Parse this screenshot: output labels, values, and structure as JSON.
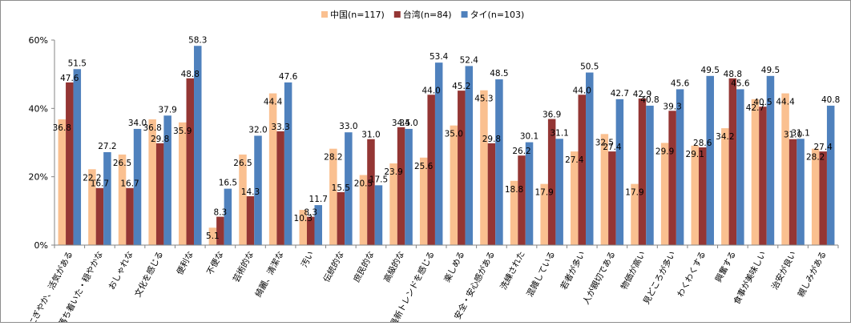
{
  "chart_data": {
    "type": "bar",
    "title": "",
    "xlabel": "",
    "ylabel": "",
    "ylim": [
      0,
      60
    ],
    "yticks": [
      0,
      20,
      40,
      60
    ],
    "ytick_format": "percent",
    "grid": false,
    "legend_position": "top",
    "categories": [
      "にぎやか、活気がある",
      "落ち着いた・穏やかな",
      "おしゃれな",
      "文化を感じる",
      "便利な",
      "不便な",
      "芸術的な",
      "綺麗、清潔な",
      "汚い",
      "伝統的な",
      "庶民的な",
      "高級的な",
      "最新トレンドを感じる",
      "楽しめる",
      "安全・安心感がある",
      "洗練された",
      "混雑している",
      "若者が多い",
      "人が親切である",
      "物価が高い",
      "見どころが多い",
      "わくわくする",
      "興奮する",
      "食事が美味しい",
      "治安が良い",
      "親しみがある"
    ],
    "series": [
      {
        "name": "中国(n=117)",
        "color": "#fac090",
        "values": [
          36.8,
          22.2,
          26.5,
          36.8,
          35.9,
          5.1,
          26.5,
          44.4,
          10.3,
          28.2,
          20.5,
          23.9,
          25.6,
          35.0,
          45.3,
          18.8,
          17.9,
          27.4,
          32.5,
          17.9,
          29.9,
          29.1,
          34.2,
          42.7,
          44.4,
          28.2
        ]
      },
      {
        "name": "台湾(n=84)",
        "color": "#943634",
        "values": [
          47.6,
          16.7,
          16.7,
          29.8,
          48.8,
          8.3,
          14.3,
          33.3,
          8.3,
          15.5,
          31.0,
          34.5,
          44.0,
          45.2,
          29.8,
          26.2,
          36.9,
          44.0,
          27.4,
          42.9,
          39.3,
          28.6,
          48.8,
          40.5,
          31.0,
          27.4
        ]
      },
      {
        "name": "タイ(n=103)",
        "color": "#4f81bd",
        "values": [
          51.5,
          27.2,
          34.0,
          37.9,
          58.3,
          16.5,
          32.0,
          47.6,
          11.7,
          33.0,
          17.5,
          34.0,
          53.4,
          52.4,
          48.5,
          30.1,
          31.1,
          50.5,
          42.7,
          40.8,
          45.6,
          49.5,
          45.6,
          49.5,
          31.1,
          40.8
        ]
      }
    ]
  }
}
